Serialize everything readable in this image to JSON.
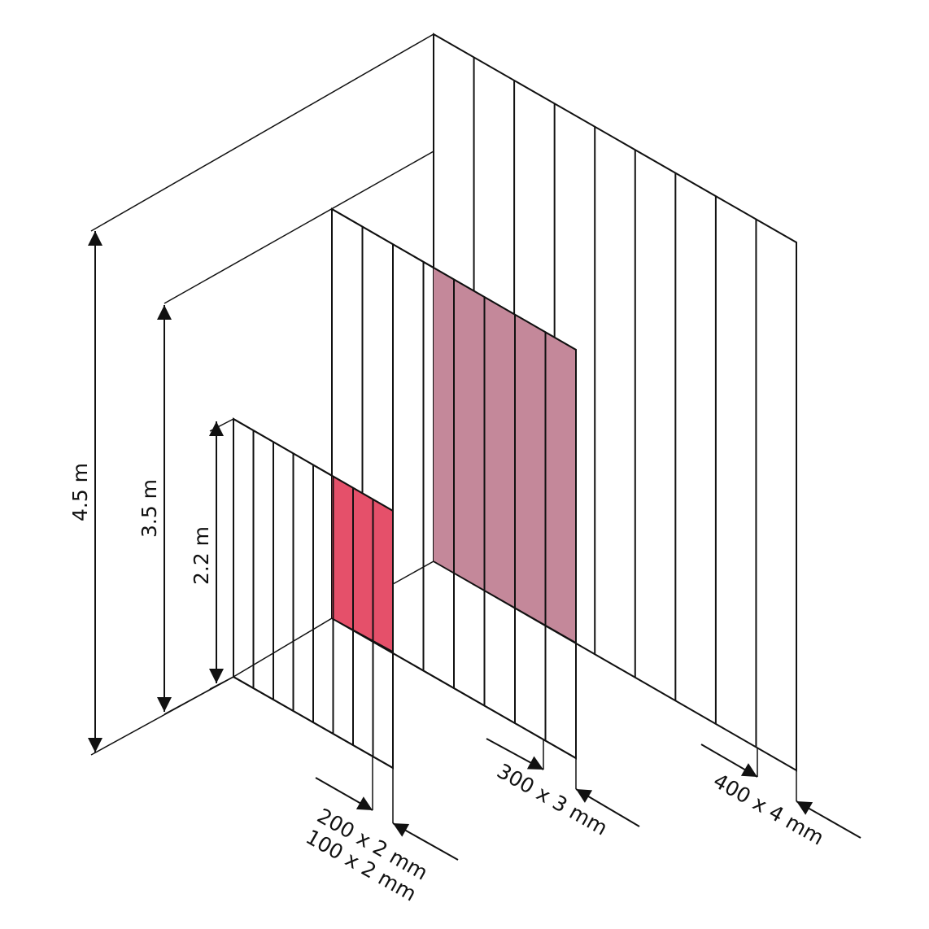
{
  "colors": {
    "gray_panel": "#c8c9c9",
    "pink_panel": "#f4aac5",
    "pink_overlap": "#c4889a",
    "red_panel": "#f17e86",
    "red_overlap": "#e5506a",
    "line": "#111111"
  },
  "panels": [
    {
      "name": "large",
      "height": "4.5 m",
      "strips": 9,
      "strip_size": "400 x 4 mm"
    },
    {
      "name": "medium",
      "height": "3.5 m",
      "strips": 8,
      "strip_size": "300 x 3 mm"
    },
    {
      "name": "small",
      "height": "2.2 m",
      "strips": 8,
      "strip_size": "200 x 2 mm",
      "strip_size_alt": "100 x 2 mm"
    }
  ],
  "icons": [
    "dimension-arrow-icon"
  ]
}
